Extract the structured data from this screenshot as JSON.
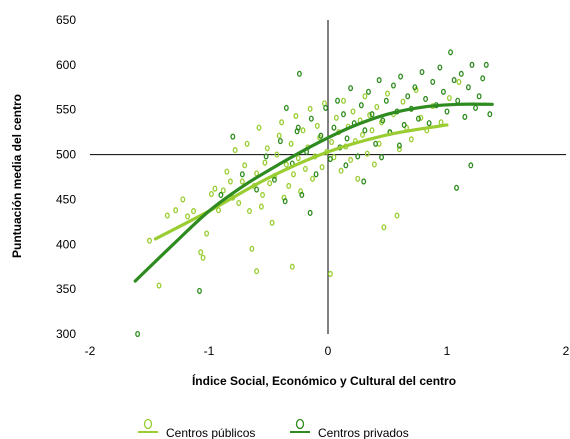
{
  "chart_data": {
    "type": "scatter",
    "title": "",
    "xlabel": "Índice Social, Económico y Cultural del centro",
    "ylabel": "Puntuación media del centro",
    "xlim": [
      -2,
      2
    ],
    "ylim": [
      300,
      650
    ],
    "x_ticks": [
      "-2",
      "-1",
      "0",
      "1",
      "2"
    ],
    "y_ticks": [
      "300",
      "350",
      "400",
      "450",
      "500",
      "550",
      "600",
      "650"
    ],
    "axes_cross_at": {
      "x": 0,
      "y": 500
    },
    "grid": false,
    "legend_position": "bottom",
    "series": [
      {
        "name": "Centros públicos",
        "color": "#9ACD32",
        "marker": "open-circle",
        "trend": {
          "type": "curve",
          "x": [
            -1.45,
            -1.0,
            -0.5,
            0.0,
            0.5,
            1.0
          ],
          "y": [
            406,
            437,
            474,
            503,
            522,
            533
          ]
        },
        "points": [
          [
            -1.5,
            404
          ],
          [
            -1.42,
            354
          ],
          [
            -1.35,
            432
          ],
          [
            -1.28,
            438
          ],
          [
            -1.22,
            450
          ],
          [
            -1.18,
            431
          ],
          [
            -1.13,
            437
          ],
          [
            -1.07,
            391
          ],
          [
            -1.05,
            385
          ],
          [
            -1.02,
            412
          ],
          [
            -0.98,
            456
          ],
          [
            -0.95,
            462
          ],
          [
            -0.92,
            438
          ],
          [
            -0.88,
            460
          ],
          [
            -0.85,
            481
          ],
          [
            -0.82,
            470
          ],
          [
            -0.8,
            452
          ],
          [
            -0.78,
            505
          ],
          [
            -0.75,
            446
          ],
          [
            -0.72,
            470
          ],
          [
            -0.7,
            488
          ],
          [
            -0.68,
            512
          ],
          [
            -0.66,
            437
          ],
          [
            -0.64,
            395
          ],
          [
            -0.62,
            465
          ],
          [
            -0.6,
            479
          ],
          [
            -0.58,
            530
          ],
          [
            -0.56,
            442
          ],
          [
            -0.55,
            455
          ],
          [
            -0.53,
            491
          ],
          [
            -0.51,
            507
          ],
          [
            -0.49,
            468
          ],
          [
            -0.47,
            424
          ],
          [
            -0.45,
            476
          ],
          [
            -0.43,
            500
          ],
          [
            -0.41,
            521
          ],
          [
            -0.39,
            536
          ],
          [
            -0.37,
            452
          ],
          [
            -0.35,
            489
          ],
          [
            -0.33,
            465
          ],
          [
            -0.31,
            512
          ],
          [
            -0.29,
            478
          ],
          [
            -0.27,
            543
          ],
          [
            -0.25,
            496
          ],
          [
            -0.23,
            459
          ],
          [
            -0.21,
            527
          ],
          [
            -0.19,
            484
          ],
          [
            -0.17,
            508
          ],
          [
            -0.15,
            551
          ],
          [
            -0.13,
            473
          ],
          [
            -0.11,
            498
          ],
          [
            -0.09,
            532
          ],
          [
            -0.07,
            519
          ],
          [
            -0.05,
            486
          ],
          [
            -0.03,
            557
          ],
          [
            -0.01,
            503
          ],
          [
            0.02,
            367
          ],
          [
            0.03,
            514
          ],
          [
            0.05,
            497
          ],
          [
            0.07,
            541
          ],
          [
            0.09,
            525
          ],
          [
            0.11,
            482
          ],
          [
            0.13,
            560
          ],
          [
            0.15,
            509
          ],
          [
            0.17,
            531
          ],
          [
            0.19,
            494
          ],
          [
            0.21,
            548
          ],
          [
            0.23,
            515
          ],
          [
            0.25,
            473
          ],
          [
            0.27,
            538
          ],
          [
            0.29,
            522
          ],
          [
            0.31,
            565
          ],
          [
            0.33,
            501
          ],
          [
            0.35,
            544
          ],
          [
            0.37,
            527
          ],
          [
            0.39,
            489
          ],
          [
            0.41,
            553
          ],
          [
            0.43,
            512
          ],
          [
            0.45,
            536
          ],
          [
            0.47,
            419
          ],
          [
            0.5,
            568
          ],
          [
            0.52,
            524
          ],
          [
            0.55,
            545
          ],
          [
            0.58,
            432
          ],
          [
            0.6,
            506
          ],
          [
            0.63,
            559
          ],
          [
            0.66,
            530
          ],
          [
            0.7,
            517
          ],
          [
            0.74,
            572
          ],
          [
            0.78,
            541
          ],
          [
            0.83,
            527
          ],
          [
            0.88,
            554
          ],
          [
            0.95,
            536
          ],
          [
            1.02,
            563
          ],
          [
            1.1,
            581
          ],
          [
            -0.6,
            370
          ],
          [
            -0.3,
            375
          ]
        ]
      },
      {
        "name": "Centros privados",
        "color": "#2E8B1F",
        "marker": "open-circle",
        "trend": {
          "type": "curve",
          "x": [
            -1.62,
            -1.3,
            -1.0,
            -0.7,
            -0.4,
            -0.1,
            0.2,
            0.5,
            0.8,
            1.1,
            1.38
          ],
          "y": [
            359,
            400,
            437,
            466,
            490,
            512,
            531,
            545,
            553,
            556,
            556
          ]
        },
        "points": [
          [
            -1.6,
            300
          ],
          [
            -1.08,
            348
          ],
          [
            -0.9,
            455
          ],
          [
            -0.72,
            478
          ],
          [
            -0.6,
            461
          ],
          [
            -0.52,
            498
          ],
          [
            -0.45,
            472
          ],
          [
            -0.4,
            515
          ],
          [
            -0.36,
            448
          ],
          [
            -0.3,
            490
          ],
          [
            -0.26,
            526
          ],
          [
            -0.22,
            455
          ],
          [
            -0.18,
            503
          ],
          [
            -0.14,
            540
          ],
          [
            -0.1,
            478
          ],
          [
            -0.06,
            521
          ],
          [
            -0.02,
            552
          ],
          [
            0.02,
            495
          ],
          [
            0.05,
            530
          ],
          [
            0.08,
            560
          ],
          [
            0.1,
            508
          ],
          [
            0.13,
            545
          ],
          [
            0.16,
            518
          ],
          [
            0.19,
            574
          ],
          [
            0.22,
            535
          ],
          [
            0.25,
            498
          ],
          [
            0.28,
            555
          ],
          [
            0.31,
            527
          ],
          [
            0.34,
            570
          ],
          [
            0.37,
            545
          ],
          [
            0.4,
            512
          ],
          [
            0.43,
            583
          ],
          [
            0.46,
            538
          ],
          [
            0.49,
            560
          ],
          [
            0.52,
            525
          ],
          [
            0.55,
            577
          ],
          [
            0.58,
            548
          ],
          [
            0.61,
            587
          ],
          [
            0.64,
            533
          ],
          [
            0.67,
            565
          ],
          [
            0.7,
            551
          ],
          [
            0.73,
            575
          ],
          [
            0.76,
            540
          ],
          [
            0.79,
            592
          ],
          [
            0.82,
            562
          ],
          [
            0.85,
            535
          ],
          [
            0.88,
            581
          ],
          [
            0.91,
            555
          ],
          [
            0.94,
            597
          ],
          [
            0.97,
            570
          ],
          [
            1.0,
            548
          ],
          [
            1.03,
            614
          ],
          [
            1.06,
            583
          ],
          [
            1.09,
            560
          ],
          [
            1.12,
            590
          ],
          [
            1.15,
            542
          ],
          [
            1.18,
            575
          ],
          [
            1.21,
            600
          ],
          [
            1.24,
            552
          ],
          [
            1.27,
            565
          ],
          [
            1.3,
            585
          ],
          [
            1.33,
            600
          ],
          [
            1.36,
            545
          ],
          [
            1.08,
            463
          ],
          [
            1.2,
            488
          ],
          [
            0.45,
            497
          ],
          [
            0.6,
            510
          ],
          [
            0.3,
            470
          ],
          [
            -0.15,
            435
          ],
          [
            -0.25,
            530
          ],
          [
            0.15,
            488
          ],
          [
            -0.35,
            552
          ],
          [
            -0.8,
            520
          ],
          [
            -0.24,
            590
          ]
        ]
      }
    ]
  }
}
